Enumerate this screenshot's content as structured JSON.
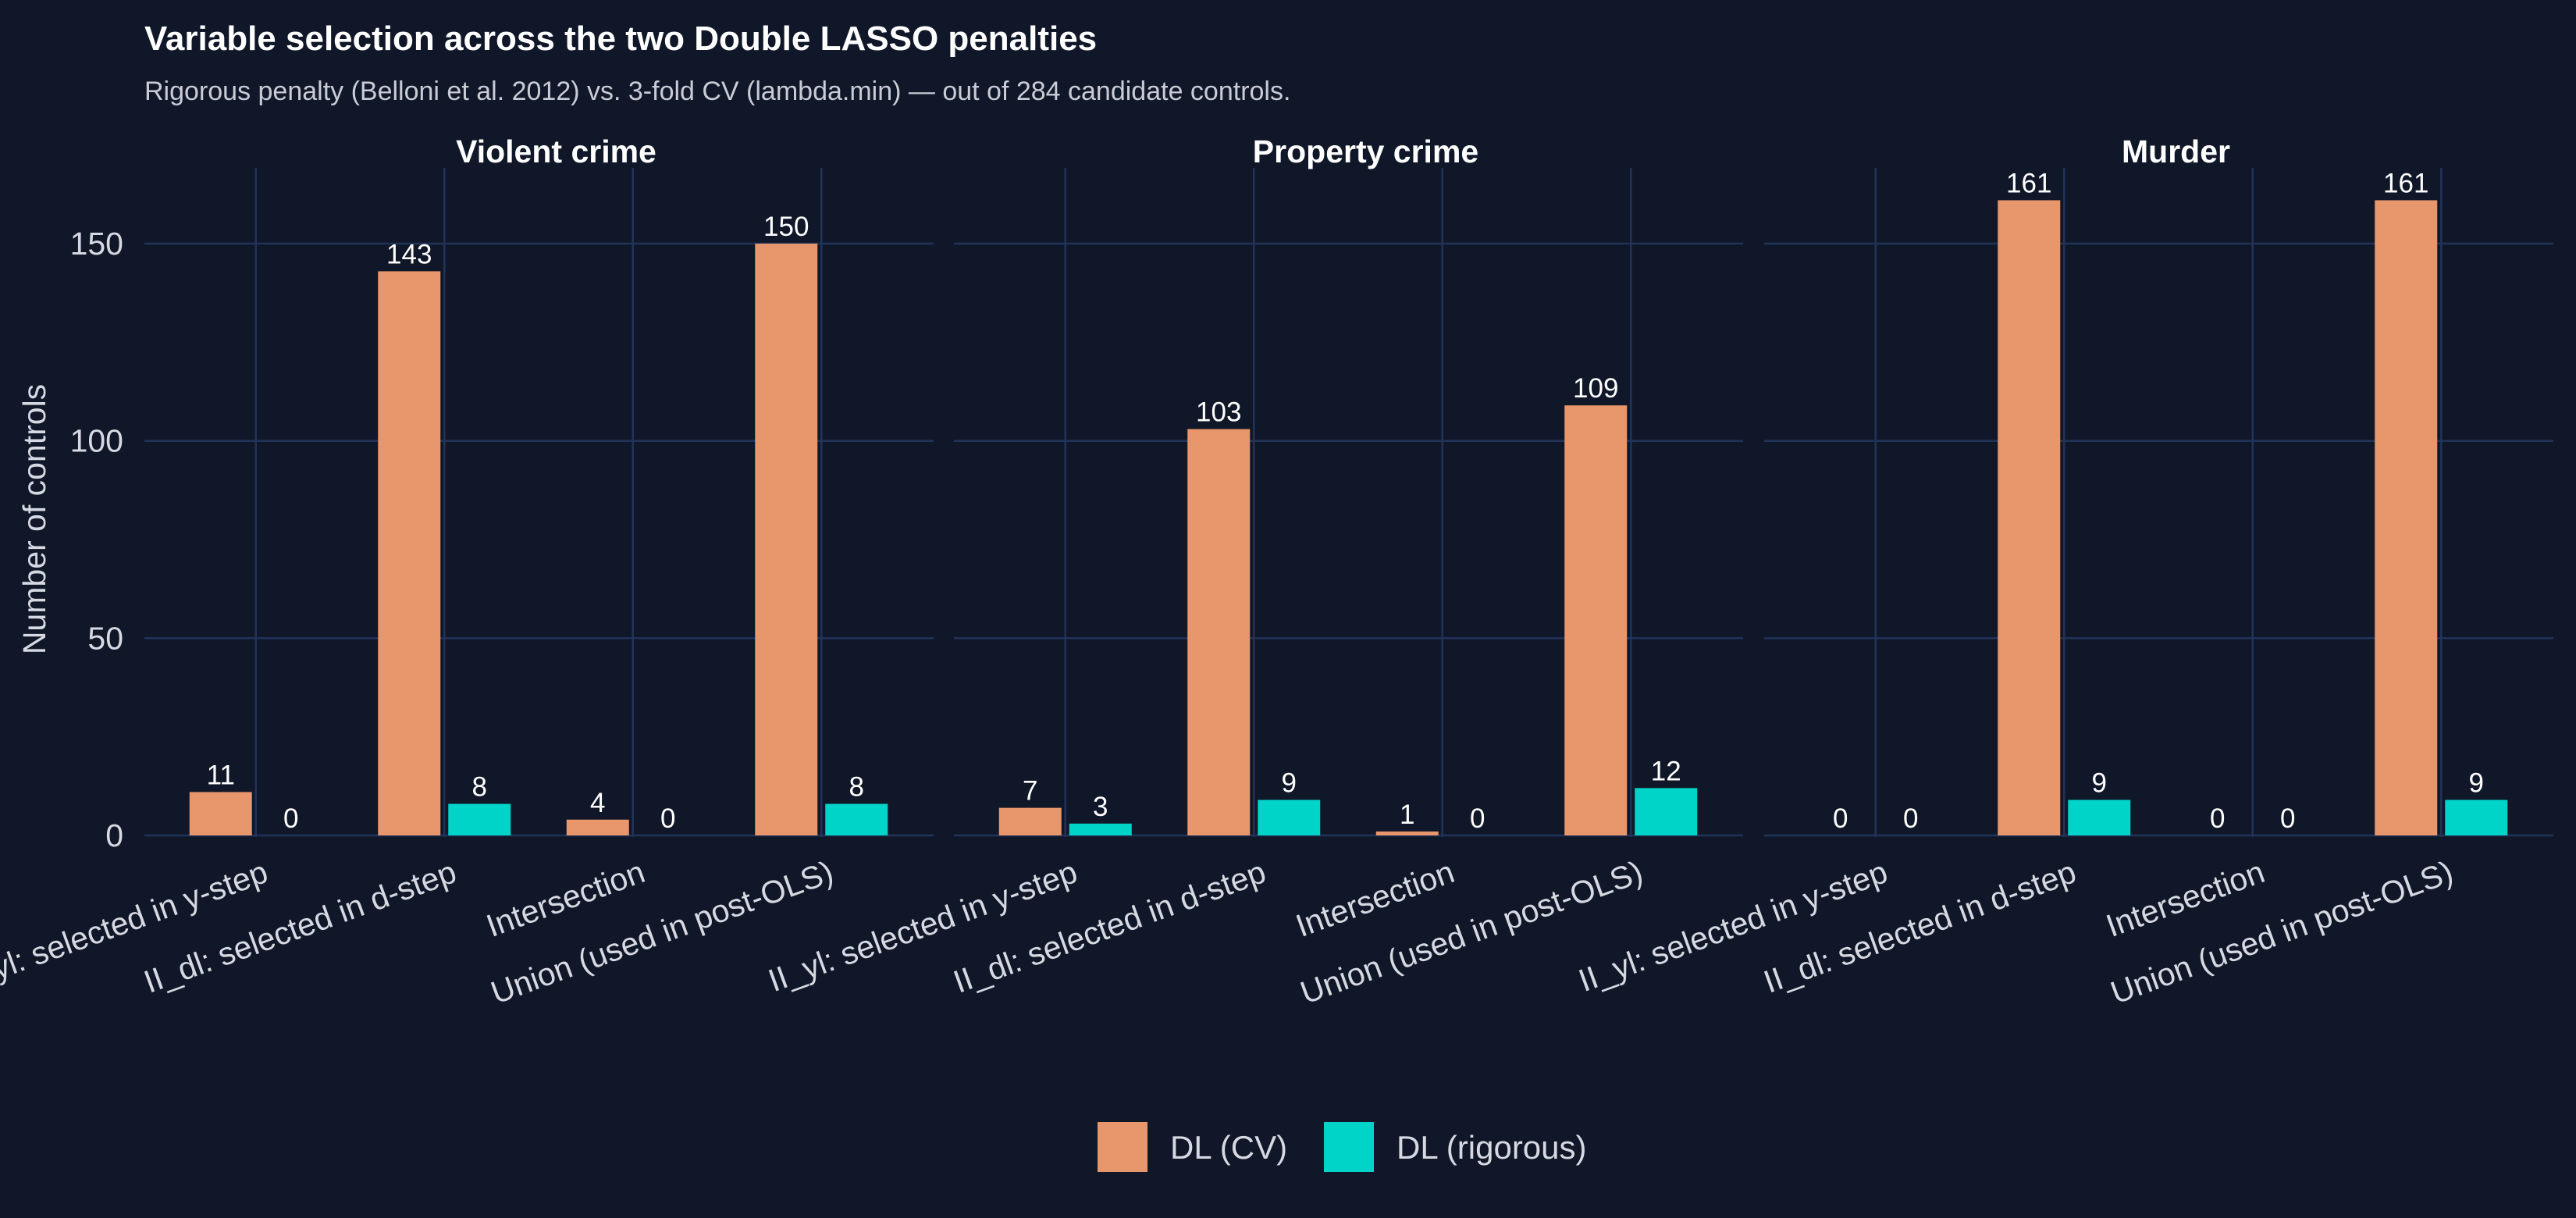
{
  "chart_data": {
    "type": "bar",
    "title": "Variable selection across the two Double LASSO penalties",
    "subtitle": "Rigorous penalty (Belloni et al. 2012) vs. 3-fold CV (lambda.min) — out of 284 candidate controls.",
    "xlabel": "",
    "ylabel": "Number of controls",
    "ylim": [
      0,
      170
    ],
    "yticks": [
      0,
      50,
      100,
      150
    ],
    "grid": true,
    "legend_position": "bottom",
    "categories": [
      "II_yl: selected in y-step",
      "II_dl: selected in d-step",
      "Intersection",
      "Union (used in post-OLS)"
    ],
    "facets": [
      {
        "title": "Violent crime",
        "series": [
          {
            "name": "DL (CV)",
            "values": [
              11,
              143,
              4,
              150
            ]
          },
          {
            "name": "DL (rigorous)",
            "values": [
              0,
              8,
              0,
              8
            ]
          }
        ]
      },
      {
        "title": "Property crime",
        "series": [
          {
            "name": "DL (CV)",
            "values": [
              7,
              103,
              1,
              109
            ]
          },
          {
            "name": "DL (rigorous)",
            "values": [
              3,
              9,
              0,
              12
            ]
          }
        ]
      },
      {
        "title": "Murder",
        "series": [
          {
            "name": "DL (CV)",
            "values": [
              0,
              161,
              0,
              161
            ]
          },
          {
            "name": "DL (rigorous)",
            "values": [
              0,
              9,
              0,
              9
            ]
          }
        ]
      }
    ],
    "legend": [
      {
        "name": "DL (CV)",
        "color": "#e8966b"
      },
      {
        "name": "DL (rigorous)",
        "color": "#00d4c8"
      }
    ]
  }
}
